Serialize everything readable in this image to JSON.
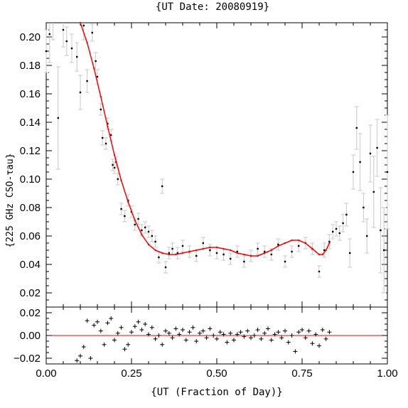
{
  "chart_data": [
    {
      "type": "scatter",
      "title": "{UT Date: 20080919}",
      "xlabel": "{UT (Fraction of Day)}",
      "ylabel": "{225 GHz CSO-τau}",
      "xlim": [
        0.0,
        1.0
      ],
      "ylim": [
        0.01,
        0.21
      ],
      "x_ticks": [
        "0.00",
        "0.25",
        "0.50",
        "0.75",
        "1.00"
      ],
      "y_ticks": [
        "0.02",
        "0.04",
        "0.06",
        "0.08",
        "0.10",
        "0.12",
        "0.14",
        "0.16",
        "0.18",
        "0.20"
      ],
      "series": [
        {
          "kind": "points_with_errorbars",
          "color": "#000000",
          "errorbar_color": "#c8c8c8",
          "x": [
            0.0,
            0.01,
            0.02,
            0.035,
            0.05,
            0.06,
            0.075,
            0.09,
            0.1,
            0.11,
            0.12,
            0.135,
            0.145,
            0.15,
            0.16,
            0.165,
            0.175,
            0.18,
            0.19,
            0.195,
            0.2,
            0.205,
            0.21,
            0.22,
            0.23,
            0.24,
            0.25,
            0.26,
            0.27,
            0.28,
            0.29,
            0.3,
            0.31,
            0.32,
            0.33,
            0.34,
            0.35,
            0.36,
            0.37,
            0.385,
            0.4,
            0.42,
            0.44,
            0.46,
            0.48,
            0.5,
            0.52,
            0.54,
            0.56,
            0.58,
            0.6,
            0.62,
            0.64,
            0.66,
            0.68,
            0.7,
            0.72,
            0.74,
            0.76,
            0.78,
            0.8,
            0.815,
            0.83,
            0.84,
            0.85,
            0.86,
            0.87,
            0.88,
            0.89,
            0.9,
            0.91,
            0.92,
            0.93,
            0.94,
            0.95,
            0.96,
            0.97,
            0.98,
            0.99,
            1.0
          ],
          "y": [
            0.19,
            0.202,
            0.218,
            0.143,
            0.205,
            0.197,
            0.192,
            0.186,
            0.161,
            0.208,
            0.169,
            0.203,
            0.183,
            0.172,
            0.149,
            0.129,
            0.125,
            0.139,
            0.131,
            0.11,
            0.108,
            0.112,
            0.1,
            0.079,
            0.074,
            0.085,
            0.077,
            0.068,
            0.072,
            0.064,
            0.066,
            0.063,
            0.06,
            0.056,
            0.045,
            0.095,
            0.038,
            0.048,
            0.051,
            0.048,
            0.053,
            0.049,
            0.046,
            0.055,
            0.05,
            0.048,
            0.047,
            0.044,
            0.049,
            0.042,
            0.046,
            0.051,
            0.049,
            0.047,
            0.054,
            0.042,
            0.049,
            0.053,
            0.055,
            0.051,
            0.035,
            0.05,
            0.056,
            0.063,
            0.065,
            0.062,
            0.069,
            0.075,
            0.048,
            0.105,
            0.136,
            0.112,
            0.08,
            0.06,
            0.118,
            0.091,
            0.122,
            0.064,
            0.05,
            0.105
          ],
          "err": [
            0.015,
            0.02,
            0.02,
            0.036,
            0.012,
            0.01,
            0.01,
            0.01,
            0.012,
            0.01,
            0.008,
            0.006,
            0.006,
            0.005,
            0.004,
            0.005,
            0.004,
            0.004,
            0.004,
            0.004,
            0.004,
            0.004,
            0.004,
            0.004,
            0.004,
            0.004,
            0.004,
            0.004,
            0.004,
            0.004,
            0.004,
            0.004,
            0.004,
            0.004,
            0.004,
            0.005,
            0.004,
            0.004,
            0.004,
            0.004,
            0.004,
            0.004,
            0.004,
            0.004,
            0.004,
            0.004,
            0.004,
            0.004,
            0.004,
            0.004,
            0.004,
            0.004,
            0.004,
            0.004,
            0.004,
            0.004,
            0.004,
            0.004,
            0.004,
            0.004,
            0.004,
            0.005,
            0.005,
            0.005,
            0.005,
            0.005,
            0.006,
            0.008,
            0.01,
            0.012,
            0.015,
            0.02,
            0.01,
            0.012,
            0.02,
            0.025,
            0.02,
            0.03,
            0.03,
            0.04
          ]
        },
        {
          "kind": "fit_curve",
          "color": "#ff0000",
          "x": [
            0.1,
            0.12,
            0.14,
            0.16,
            0.18,
            0.2,
            0.22,
            0.24,
            0.26,
            0.28,
            0.3,
            0.32,
            0.34,
            0.36,
            0.38,
            0.4,
            0.42,
            0.44,
            0.46,
            0.48,
            0.5,
            0.52,
            0.54,
            0.56,
            0.58,
            0.6,
            0.62,
            0.64,
            0.66,
            0.68,
            0.7,
            0.72,
            0.74,
            0.76,
            0.78,
            0.8,
            0.81,
            0.82,
            0.83
          ],
          "y": [
            0.21,
            0.196,
            0.178,
            0.158,
            0.137,
            0.117,
            0.099,
            0.084,
            0.071,
            0.061,
            0.054,
            0.05,
            0.048,
            0.047,
            0.047,
            0.048,
            0.049,
            0.05,
            0.051,
            0.052,
            0.052,
            0.051,
            0.05,
            0.048,
            0.047,
            0.046,
            0.046,
            0.048,
            0.05,
            0.053,
            0.055,
            0.057,
            0.057,
            0.055,
            0.051,
            0.047,
            0.047,
            0.05,
            0.055
          ]
        }
      ]
    },
    {
      "type": "scatter",
      "subplot": "residuals",
      "xlim": [
        0.0,
        1.0
      ],
      "ylim": [
        -0.025,
        0.025
      ],
      "y_ticks": [
        "0.02",
        "0.00",
        "−0.02"
      ],
      "series": [
        {
          "kind": "residual_points",
          "marker": "+",
          "x": [
            0.09,
            0.1,
            0.11,
            0.12,
            0.13,
            0.14,
            0.15,
            0.16,
            0.17,
            0.18,
            0.19,
            0.2,
            0.21,
            0.22,
            0.23,
            0.24,
            0.25,
            0.26,
            0.27,
            0.28,
            0.29,
            0.3,
            0.31,
            0.32,
            0.33,
            0.34,
            0.35,
            0.36,
            0.37,
            0.38,
            0.39,
            0.4,
            0.41,
            0.42,
            0.43,
            0.44,
            0.45,
            0.46,
            0.47,
            0.48,
            0.49,
            0.5,
            0.51,
            0.52,
            0.53,
            0.54,
            0.55,
            0.56,
            0.57,
            0.58,
            0.59,
            0.6,
            0.61,
            0.62,
            0.63,
            0.64,
            0.65,
            0.66,
            0.67,
            0.68,
            0.69,
            0.7,
            0.71,
            0.72,
            0.73,
            0.74,
            0.75,
            0.76,
            0.77,
            0.78,
            0.79,
            0.8,
            0.81,
            0.82,
            0.83
          ],
          "y": [
            -0.022,
            -0.018,
            -0.01,
            0.013,
            -0.02,
            0.009,
            0.012,
            0.004,
            -0.008,
            0.011,
            0.015,
            -0.004,
            0.002,
            0.007,
            -0.012,
            -0.008,
            0.003,
            0.008,
            0.012,
            0.005,
            0.01,
            0.001,
            0.007,
            -0.003,
            0.0,
            -0.008,
            0.004,
            0.002,
            -0.002,
            0.006,
            0.001,
            0.005,
            -0.004,
            0.003,
            0.007,
            -0.005,
            0.002,
            0.004,
            -0.002,
            0.006,
            0.0,
            -0.003,
            0.003,
            0.001,
            -0.006,
            0.002,
            -0.004,
            0.001,
            0.003,
            -0.001,
            0.004,
            -0.002,
            0.0,
            0.005,
            -0.003,
            0.002,
            0.006,
            -0.004,
            0.001,
            0.003,
            -0.002,
            0.004,
            -0.006,
            0.0,
            -0.014,
            0.003,
            0.005,
            -0.002,
            0.004,
            -0.007,
            0.001,
            -0.009,
            0.005,
            -0.003,
            0.003
          ]
        },
        {
          "kind": "zero_line",
          "color": "#ff0000",
          "y": 0.0
        }
      ]
    }
  ]
}
